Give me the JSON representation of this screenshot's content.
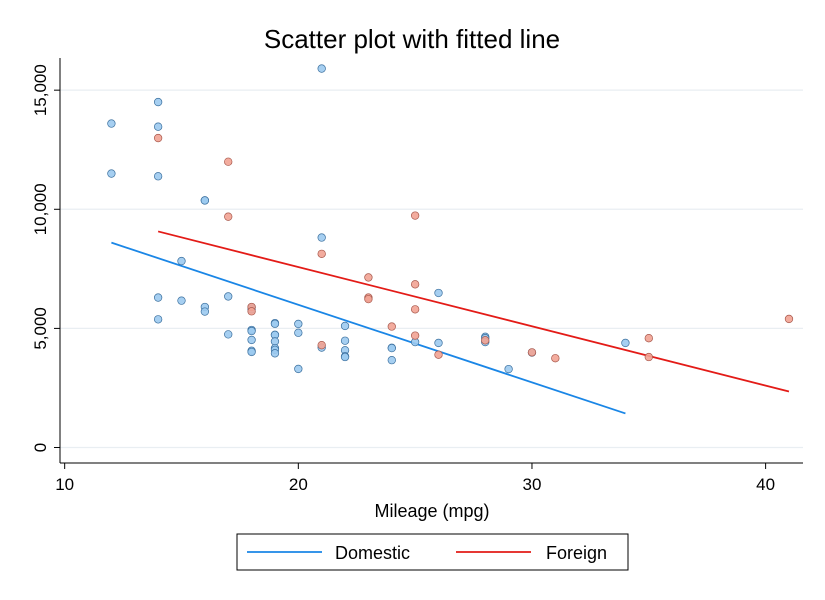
{
  "chart_data": {
    "type": "scatter",
    "title": "Scatter plot with fitted line",
    "xlabel": "Mileage (mpg)",
    "ylabel": "",
    "xlim": [
      9.8,
      41.6
    ],
    "ylim": [
      -650,
      16350
    ],
    "xticks": [
      10,
      20,
      30,
      40
    ],
    "xtick_labels": [
      "10",
      "20",
      "30",
      "40"
    ],
    "yticks": [
      0,
      5000,
      10000,
      15000
    ],
    "ytick_labels": [
      "0",
      "5,000",
      "10,000",
      "15,000"
    ],
    "grid": "horizontal",
    "legend_position": "bottom",
    "series": [
      {
        "name": "Domestic",
        "point_color": "#9ccaf0",
        "edge_color": "#3a6f9e",
        "line_color": "#1a86e6",
        "fit": {
          "x": [
            12,
            34
          ],
          "y": [
            8600,
            1430
          ]
        },
        "points": [
          [
            12,
            13600
          ],
          [
            12,
            11500
          ],
          [
            14,
            14500
          ],
          [
            14,
            13466
          ],
          [
            14,
            11385
          ],
          [
            14,
            6295
          ],
          [
            14,
            5379
          ],
          [
            15,
            7827
          ],
          [
            15,
            6165
          ],
          [
            16,
            10372
          ],
          [
            16,
            10371
          ],
          [
            16,
            5899
          ],
          [
            16,
            5705
          ],
          [
            17,
            6342
          ],
          [
            17,
            4749
          ],
          [
            18,
            5886
          ],
          [
            18,
            5799
          ],
          [
            18,
            4934
          ],
          [
            18,
            4890
          ],
          [
            18,
            4516
          ],
          [
            18,
            4060
          ],
          [
            18,
            4010
          ],
          [
            19,
            5222
          ],
          [
            19,
            5190
          ],
          [
            19,
            4733
          ],
          [
            19,
            4723
          ],
          [
            19,
            4453
          ],
          [
            19,
            4172
          ],
          [
            19,
            4099
          ],
          [
            19,
            3955
          ],
          [
            20,
            5189
          ],
          [
            20,
            4816
          ],
          [
            20,
            3299
          ],
          [
            21,
            15906
          ],
          [
            21,
            8814
          ],
          [
            21,
            4195
          ],
          [
            22,
            5104
          ],
          [
            22,
            4482
          ],
          [
            22,
            4082
          ],
          [
            22,
            3829
          ],
          [
            22,
            3799
          ],
          [
            24,
            4187
          ],
          [
            24,
            4172
          ],
          [
            24,
            3667
          ],
          [
            25,
            4424
          ],
          [
            26,
            6486
          ],
          [
            26,
            4389
          ],
          [
            28,
            4647
          ],
          [
            28,
            4589
          ],
          [
            28,
            4425
          ],
          [
            29,
            3291
          ],
          [
            30,
            3984
          ],
          [
            34,
            4389
          ]
        ]
      },
      {
        "name": "Foreign",
        "point_color": "#f2a394",
        "edge_color": "#a8584c",
        "line_color": "#e31b17",
        "fit": {
          "x": [
            14,
            41
          ],
          "y": [
            9070,
            2350
          ]
        },
        "points": [
          [
            14,
            12990
          ],
          [
            17,
            11995
          ],
          [
            17,
            9690
          ],
          [
            18,
            5899
          ],
          [
            18,
            5719
          ],
          [
            21,
            8129
          ],
          [
            21,
            4296
          ],
          [
            23,
            7140
          ],
          [
            23,
            6295
          ],
          [
            23,
            6229
          ],
          [
            24,
            5079
          ],
          [
            25,
            9735
          ],
          [
            25,
            6850
          ],
          [
            25,
            5799
          ],
          [
            25,
            4697
          ],
          [
            26,
            3895
          ],
          [
            28,
            4499
          ],
          [
            30,
            3995
          ],
          [
            31,
            3748
          ],
          [
            35,
            4589
          ],
          [
            35,
            3798
          ],
          [
            41,
            5397
          ]
        ]
      }
    ]
  }
}
